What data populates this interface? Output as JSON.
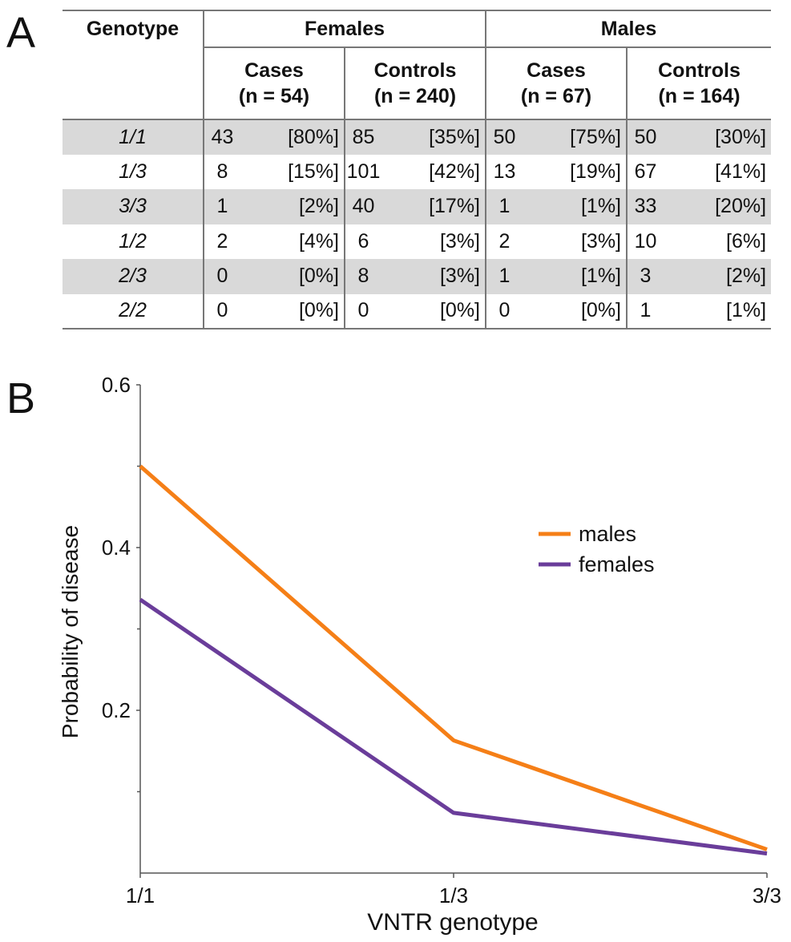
{
  "panel_a_label": "A",
  "panel_b_label": "B",
  "table": {
    "genotype_header": "Genotype",
    "groups": [
      "Females",
      "Males"
    ],
    "subheaders": [
      {
        "line1": "Cases",
        "line2": "(n = 54)"
      },
      {
        "line1": "Controls",
        "line2": "(n = 240)"
      },
      {
        "line1": "Cases",
        "line2": "(n = 67)"
      },
      {
        "line1": "Controls",
        "line2": "(n = 164)"
      }
    ],
    "rows": [
      {
        "genotype": "1/1",
        "cells": [
          [
            "43",
            "[80%]"
          ],
          [
            "85",
            "[35%]"
          ],
          [
            "50",
            "[75%]"
          ],
          [
            "50",
            "[30%]"
          ]
        ]
      },
      {
        "genotype": "1/3",
        "cells": [
          [
            "8",
            "[15%]"
          ],
          [
            "101",
            "[42%]"
          ],
          [
            "13",
            "[19%]"
          ],
          [
            "67",
            "[41%]"
          ]
        ]
      },
      {
        "genotype": "3/3",
        "cells": [
          [
            "1",
            "[2%]"
          ],
          [
            "40",
            "[17%]"
          ],
          [
            "1",
            "[1%]"
          ],
          [
            "33",
            "[20%]"
          ]
        ]
      },
      {
        "genotype": "1/2",
        "cells": [
          [
            "2",
            "[4%]"
          ],
          [
            "6",
            "[3%]"
          ],
          [
            "2",
            "[3%]"
          ],
          [
            "10",
            "[6%]"
          ]
        ]
      },
      {
        "genotype": "2/3",
        "cells": [
          [
            "0",
            "[0%]"
          ],
          [
            "8",
            "[3%]"
          ],
          [
            "1",
            "[1%]"
          ],
          [
            "3",
            "[2%]"
          ]
        ]
      },
      {
        "genotype": "2/2",
        "cells": [
          [
            "0",
            "[0%]"
          ],
          [
            "0",
            "[0%]"
          ],
          [
            "0",
            "[0%]"
          ],
          [
            "1",
            "[1%]"
          ]
        ]
      }
    ]
  },
  "chart_data": {
    "type": "line",
    "categories": [
      "1/1",
      "1/3",
      "3/3"
    ],
    "series": [
      {
        "name": "males",
        "color": "#f57f17",
        "values": [
          0.5,
          0.163,
          0.029
        ]
      },
      {
        "name": "females",
        "color": "#6a3d9a",
        "values": [
          0.336,
          0.074,
          0.024
        ]
      }
    ],
    "xlabel": "VNTR genotype",
    "ylabel": "Probability of disease",
    "ylim": [
      0,
      0.6
    ],
    "yticks_labeled": [
      "0.2",
      "0.4",
      "0.6"
    ],
    "yticks_labeled_values": [
      0.2,
      0.4,
      0.6
    ],
    "yticks_minor_values": [
      0.1,
      0.3,
      0.5
    ],
    "grid": false,
    "legend_position": "upper-right"
  }
}
